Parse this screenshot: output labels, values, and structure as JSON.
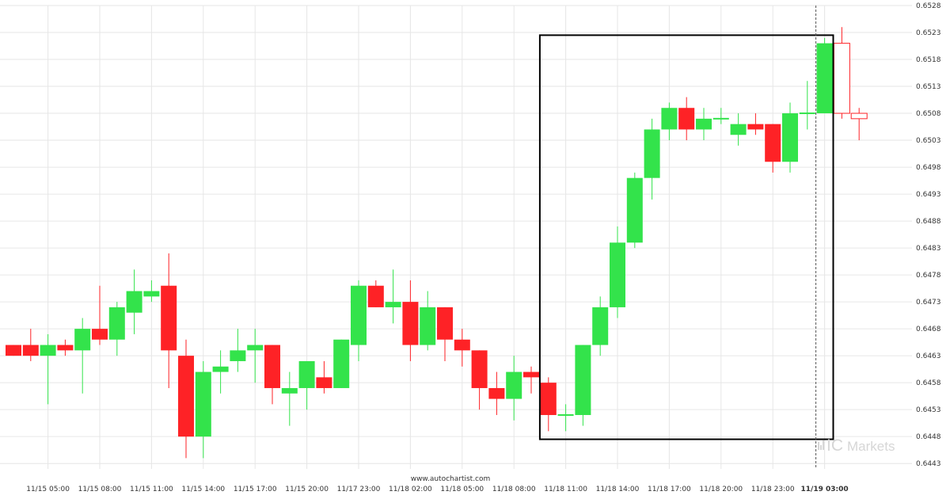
{
  "chart_data": {
    "type": "candlestick",
    "ylim": [
      0.6442,
      0.6528
    ],
    "y_ticks": [
      "0.6528",
      "0.6523",
      "0.6518",
      "0.6513",
      "0.6508",
      "0.6503",
      "0.6498",
      "0.6493",
      "0.6488",
      "0.6483",
      "0.6478",
      "0.6473",
      "0.6468",
      "0.6463",
      "0.6458",
      "0.6453",
      "0.6448",
      "0.6443"
    ],
    "x_ticks": [
      {
        "label": "11/15 05:00",
        "index": 2,
        "bold": false
      },
      {
        "label": "11/15 08:00",
        "index": 5,
        "bold": false
      },
      {
        "label": "11/15 11:00",
        "index": 8,
        "bold": false
      },
      {
        "label": "11/15 14:00",
        "index": 11,
        "bold": false
      },
      {
        "label": "11/15 17:00",
        "index": 14,
        "bold": false
      },
      {
        "label": "11/15 20:00",
        "index": 17,
        "bold": false
      },
      {
        "label": "11/17 23:00",
        "index": 20,
        "bold": false
      },
      {
        "label": "11/18 02:00",
        "index": 23,
        "bold": false
      },
      {
        "label": "11/18 05:00",
        "index": 26,
        "bold": false
      },
      {
        "label": "11/18 08:00",
        "index": 29,
        "bold": false
      },
      {
        "label": "11/18 11:00",
        "index": 32,
        "bold": false
      },
      {
        "label": "11/18 14:00",
        "index": 35,
        "bold": false
      },
      {
        "label": "11/18 17:00",
        "index": 38,
        "bold": false
      },
      {
        "label": "11/18 20:00",
        "index": 41,
        "bold": false
      },
      {
        "label": "11/18 23:00",
        "index": 44,
        "bold": false
      },
      {
        "label": "11/19 03:00",
        "index": 47,
        "bold": true
      }
    ],
    "candles": [
      {
        "o": 0.6465,
        "h": 0.6465,
        "l": 0.6463,
        "c": 0.6463
      },
      {
        "o": 0.6465,
        "h": 0.6468,
        "l": 0.6462,
        "c": 0.6463
      },
      {
        "o": 0.6463,
        "h": 0.6467,
        "l": 0.6454,
        "c": 0.6465
      },
      {
        "o": 0.6465,
        "h": 0.6466,
        "l": 0.6463,
        "c": 0.6464
      },
      {
        "o": 0.6464,
        "h": 0.647,
        "l": 0.6456,
        "c": 0.6468
      },
      {
        "o": 0.6468,
        "h": 0.6476,
        "l": 0.6465,
        "c": 0.6466
      },
      {
        "o": 0.6466,
        "h": 0.6473,
        "l": 0.6463,
        "c": 0.6472
      },
      {
        "o": 0.6471,
        "h": 0.6479,
        "l": 0.6467,
        "c": 0.6475
      },
      {
        "o": 0.6474,
        "h": 0.6477,
        "l": 0.6473,
        "c": 0.6475
      },
      {
        "o": 0.6476,
        "h": 0.6482,
        "l": 0.6457,
        "c": 0.6464
      },
      {
        "o": 0.6463,
        "h": 0.6466,
        "l": 0.6444,
        "c": 0.6448
      },
      {
        "o": 0.6448,
        "h": 0.6462,
        "l": 0.6444,
        "c": 0.646
      },
      {
        "o": 0.646,
        "h": 0.6464,
        "l": 0.6456,
        "c": 0.6461
      },
      {
        "o": 0.6462,
        "h": 0.6468,
        "l": 0.646,
        "c": 0.6464
      },
      {
        "o": 0.6464,
        "h": 0.6468,
        "l": 0.6458,
        "c": 0.6465
      },
      {
        "o": 0.6465,
        "h": 0.6465,
        "l": 0.6454,
        "c": 0.6457
      },
      {
        "o": 0.6456,
        "h": 0.646,
        "l": 0.645,
        "c": 0.6457
      },
      {
        "o": 0.6457,
        "h": 0.6462,
        "l": 0.6453,
        "c": 0.6462
      },
      {
        "o": 0.6459,
        "h": 0.6462,
        "l": 0.6456,
        "c": 0.6457
      },
      {
        "o": 0.6457,
        "h": 0.6466,
        "l": 0.6457,
        "c": 0.6466
      },
      {
        "o": 0.6465,
        "h": 0.6477,
        "l": 0.6462,
        "c": 0.6476
      },
      {
        "o": 0.6476,
        "h": 0.6477,
        "l": 0.6472,
        "c": 0.6472
      },
      {
        "o": 0.6472,
        "h": 0.6479,
        "l": 0.6469,
        "c": 0.6473
      },
      {
        "o": 0.6473,
        "h": 0.6477,
        "l": 0.6462,
        "c": 0.6465
      },
      {
        "o": 0.6465,
        "h": 0.6475,
        "l": 0.6464,
        "c": 0.6472
      },
      {
        "o": 0.6472,
        "h": 0.6472,
        "l": 0.6462,
        "c": 0.6466
      },
      {
        "o": 0.6466,
        "h": 0.6468,
        "l": 0.6461,
        "c": 0.6464
      },
      {
        "o": 0.6464,
        "h": 0.6464,
        "l": 0.6453,
        "c": 0.6457
      },
      {
        "o": 0.6457,
        "h": 0.646,
        "l": 0.6452,
        "c": 0.6455
      },
      {
        "o": 0.6455,
        "h": 0.6463,
        "l": 0.6451,
        "c": 0.646
      },
      {
        "o": 0.646,
        "h": 0.6461,
        "l": 0.6456,
        "c": 0.6459
      },
      {
        "o": 0.6458,
        "h": 0.6459,
        "l": 0.6449,
        "c": 0.6452
      },
      {
        "o": 0.6452,
        "h": 0.6454,
        "l": 0.6449,
        "c": 0.6452
      },
      {
        "o": 0.6452,
        "h": 0.6465,
        "l": 0.645,
        "c": 0.6465
      },
      {
        "o": 0.6465,
        "h": 0.6474,
        "l": 0.6463,
        "c": 0.6472
      },
      {
        "o": 0.6472,
        "h": 0.6487,
        "l": 0.647,
        "c": 0.6484
      },
      {
        "o": 0.6484,
        "h": 0.6497,
        "l": 0.6483,
        "c": 0.6496
      },
      {
        "o": 0.6496,
        "h": 0.6507,
        "l": 0.6492,
        "c": 0.6505
      },
      {
        "o": 0.6505,
        "h": 0.651,
        "l": 0.6503,
        "c": 0.6509
      },
      {
        "o": 0.6509,
        "h": 0.6511,
        "l": 0.6503,
        "c": 0.6505
      },
      {
        "o": 0.6505,
        "h": 0.6509,
        "l": 0.6503,
        "c": 0.6507
      },
      {
        "o": 0.6507,
        "h": 0.6509,
        "l": 0.6506,
        "c": 0.6507
      },
      {
        "o": 0.6504,
        "h": 0.6508,
        "l": 0.6502,
        "c": 0.6506
      },
      {
        "o": 0.6506,
        "h": 0.6508,
        "l": 0.6504,
        "c": 0.6505
      },
      {
        "o": 0.6506,
        "h": 0.6506,
        "l": 0.6497,
        "c": 0.6499
      },
      {
        "o": 0.6499,
        "h": 0.651,
        "l": 0.6497,
        "c": 0.6508
      },
      {
        "o": 0.6508,
        "h": 0.6514,
        "l": 0.6505,
        "c": 0.6508
      },
      {
        "o": 0.6508,
        "h": 0.6522,
        "l": 0.6508,
        "c": 0.6521
      },
      {
        "o": 0.6521,
        "h": 0.6524,
        "l": 0.6507,
        "c": 0.6508
      },
      {
        "o": 0.6508,
        "h": 0.6509,
        "l": 0.6503,
        "c": 0.6507
      }
    ],
    "hollow_start_index": 48,
    "pattern_box": {
      "start_index": 30.5,
      "end_index": 47.5,
      "top": 0.65225,
      "bottom": 0.64475
    },
    "current_marker_index": 47,
    "colors": {
      "bull": "#33e34b",
      "bear": "#fe2226",
      "box": "#000000",
      "grid": "#e6e6e6"
    }
  },
  "footer": {
    "source": "www.autochartist.com"
  },
  "watermark": {
    "mark": "IC",
    "brand": "Markets"
  }
}
